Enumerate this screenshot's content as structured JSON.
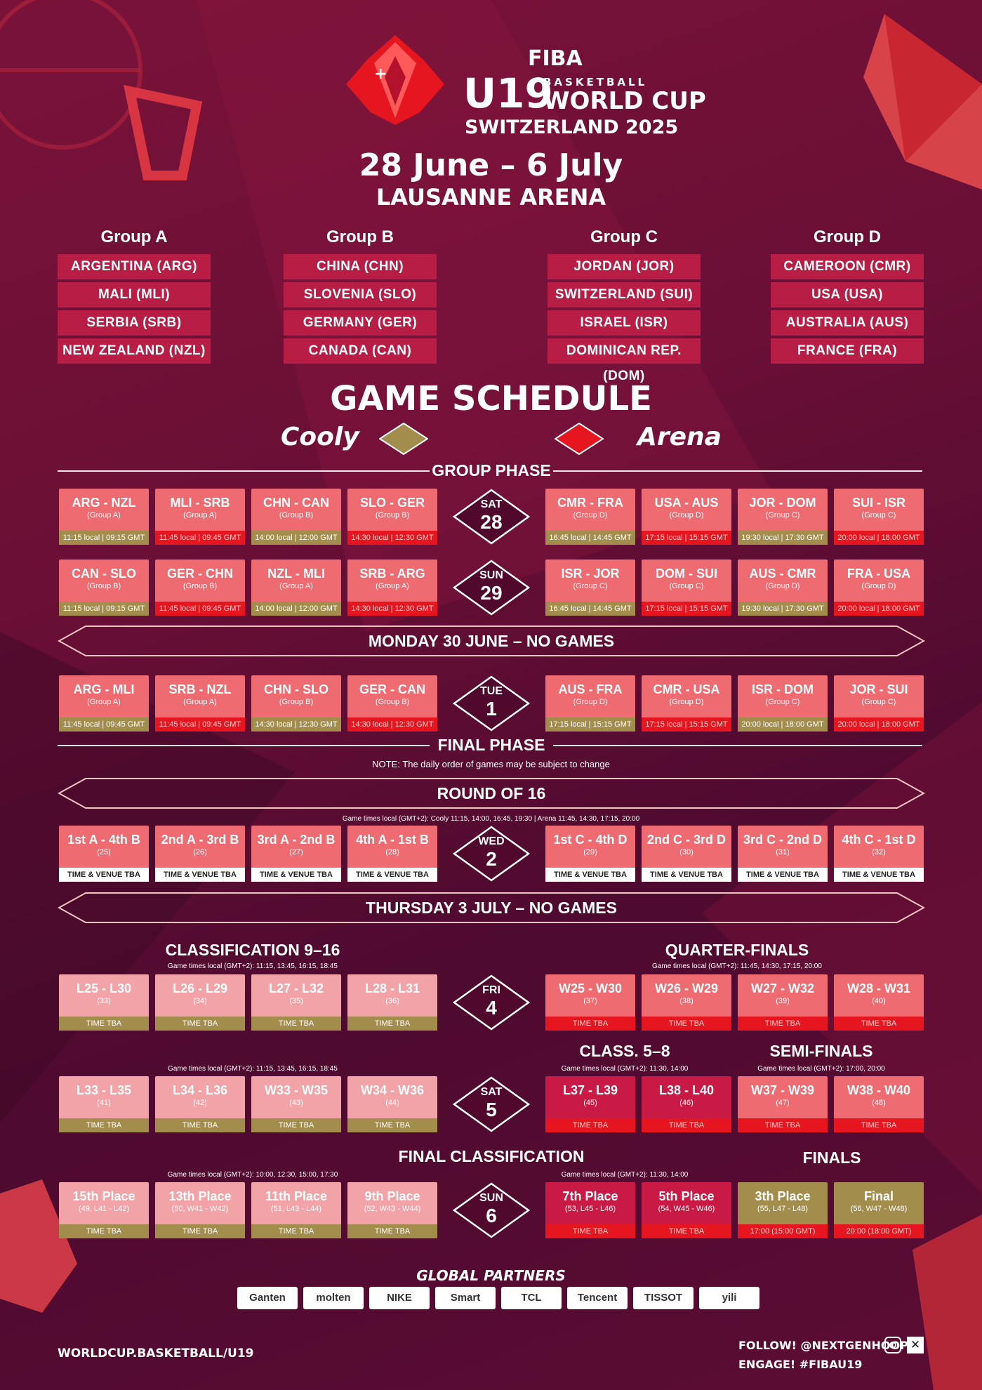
{
  "header": {
    "fiba": "FIBA",
    "u19": "U19",
    "basketball": "BASKETBALL",
    "world_cup": "WORLD CUP",
    "host": "SWITZERLAND 2025",
    "dates": "28 June – 6 July",
    "venue": "LAUSANNE ARENA"
  },
  "groups": [
    {
      "title": "Group A",
      "teams": [
        "ARGENTINA (ARG)",
        "MALI (MLI)",
        "SERBIA (SRB)",
        "NEW ZEALAND (NZL)"
      ]
    },
    {
      "title": "Group B",
      "teams": [
        "CHINA (CHN)",
        "SLOVENIA (SLO)",
        "GERMANY (GER)",
        "CANADA (CAN)"
      ]
    },
    {
      "title": "Group C",
      "teams": [
        "JORDAN (JOR)",
        "SWITZERLAND (SUI)",
        "ISRAEL (ISR)",
        "DOMINICAN REP. (DOM)"
      ]
    },
    {
      "title": "Group D",
      "teams": [
        "CAMEROON (CMR)",
        "USA (USA)",
        "AUSTRALIA (AUS)",
        "FRANCE (FRA)"
      ]
    }
  ],
  "schedule": {
    "title": "GAME SCHEDULE",
    "legend_left": "Cooly",
    "legend_right": "Arena",
    "legend_left_color": "#a28d4d",
    "legend_right_color": "#e5161f",
    "group_phase": "GROUP PHASE",
    "final_phase": "FINAL PHASE",
    "note": "NOTE: The daily order of games may be subject to change",
    "no_games_1": "MONDAY 30 JUNE – NO GAMES",
    "no_games_2": "THURSDAY 3 JULY – NO GAMES",
    "round16": "ROUND OF 16",
    "round16_times": "Game times local (GMT+2): Cooly 11:15, 14:00, 16:45, 19:30 | Arena 11:45, 14:30, 17:15, 20:00",
    "class916": "CLASSIFICATION 9–16",
    "class916_times": "Game times local (GMT+2): 11:15, 13:45, 16:15, 18:45",
    "qf": "QUARTER-FINALS",
    "qf_times": "Game times local (GMT+2): 11:45, 14:30, 17:15, 20:00",
    "class58": "CLASS. 5–8",
    "class58_times": "Game times local (GMT+2): 11:30, 14:00",
    "semis": "SEMI-FINALS",
    "semis_times": "Game times local (GMT+2): 17:00, 20:00",
    "sat5_times": "Game times local (GMT+2): 11:15, 13:45, 16:15, 18:45",
    "final_class": "FINAL CLASSIFICATION",
    "final_class_times": "Game times local (GMT+2): 10:00, 12:30, 15:00, 17:30",
    "finals": "FINALS",
    "sun6_times": "Game times local (GMT+2): 11:30, 14:00"
  },
  "days": [
    {
      "dn": "SAT",
      "dd": "28"
    },
    {
      "dn": "SUN",
      "dd": "29"
    },
    {
      "dn": "TUE",
      "dd": "1"
    },
    {
      "dn": "WED",
      "dd": "2"
    },
    {
      "dn": "FRI",
      "dd": "4"
    },
    {
      "dn": "SAT",
      "dd": "5"
    },
    {
      "dn": "SUN",
      "dd": "6"
    }
  ],
  "rows": {
    "sat28": [
      [
        "ARG - NZL",
        "(Group A)",
        "11:15 local | 09:15 GMT"
      ],
      [
        "MLI - SRB",
        "(Group A)",
        "11:45 local | 09:45 GMT"
      ],
      [
        "CHN - CAN",
        "(Group B)",
        "14:00 local | 12:00 GMT"
      ],
      [
        "SLO - GER",
        "(Group B)",
        "14:30 local | 12:30 GMT"
      ],
      [
        "CMR - FRA",
        "(Group D)",
        "16:45 local | 14:45 GMT"
      ],
      [
        "USA - AUS",
        "(Group D)",
        "17:15 local | 15:15 GMT"
      ],
      [
        "JOR - DOM",
        "(Group C)",
        "19:30 local | 17:30 GMT"
      ],
      [
        "SUI - ISR",
        "(Group C)",
        "20:00 local | 18:00 GMT"
      ]
    ],
    "sun29": [
      [
        "CAN - SLO",
        "(Group B)",
        "11:15 local | 09:15 GMT"
      ],
      [
        "GER - CHN",
        "(Group B)",
        "11:45 local | 09:45 GMT"
      ],
      [
        "NZL - MLI",
        "(Group A)",
        "14:00 local | 12:00 GMT"
      ],
      [
        "SRB - ARG",
        "(Group A)",
        "14:30 local | 12:30 GMT"
      ],
      [
        "ISR - JOR",
        "(Group C)",
        "16:45 local | 14:45 GMT"
      ],
      [
        "DOM - SUI",
        "(Group C)",
        "17:15 local | 15:15 GMT"
      ],
      [
        "AUS - CMR",
        "(Group D)",
        "19:30 local | 17:30 GMT"
      ],
      [
        "FRA - USA",
        "(Group D)",
        "20:00 local | 18:00 GMT"
      ]
    ],
    "tue1": [
      [
        "ARG - MLI",
        "(Group A)",
        "11:45 local | 09:45 GMT"
      ],
      [
        "SRB - NZL",
        "(Group A)",
        "11:45 local | 09:45 GMT"
      ],
      [
        "CHN - SLO",
        "(Group B)",
        "14:30 local | 12:30 GMT"
      ],
      [
        "GER - CAN",
        "(Group B)",
        "14:30 local | 12:30 GMT"
      ],
      [
        "AUS - FRA",
        "(Group D)",
        "17:15 local | 15:15 GMT"
      ],
      [
        "CMR - USA",
        "(Group D)",
        "17:15 local | 15:15 GMT"
      ],
      [
        "ISR - DOM",
        "(Group C)",
        "20:00 local | 18:00 GMT"
      ],
      [
        "JOR - SUI",
        "(Group C)",
        "20:00 local | 18:00 GMT"
      ]
    ],
    "wed2": [
      [
        "1st A - 4th B",
        "(25)",
        "TIME & VENUE TBA"
      ],
      [
        "2nd A - 3rd B",
        "(26)",
        "TIME & VENUE TBA"
      ],
      [
        "3rd A - 2nd B",
        "(27)",
        "TIME & VENUE TBA"
      ],
      [
        "4th A - 1st B",
        "(28)",
        "TIME & VENUE TBA"
      ],
      [
        "1st C - 4th D",
        "(29)",
        "TIME & VENUE TBA"
      ],
      [
        "2nd C - 3rd D",
        "(30)",
        "TIME & VENUE TBA"
      ],
      [
        "3rd C - 2nd D",
        "(31)",
        "TIME & VENUE TBA"
      ],
      [
        "4th C - 1st D",
        "(32)",
        "TIME & VENUE TBA"
      ]
    ],
    "fri4": [
      [
        "L25 - L30",
        "(33)",
        "TIME TBA"
      ],
      [
        "L26 - L29",
        "(34)",
        "TIME TBA"
      ],
      [
        "L27 - L32",
        "(35)",
        "TIME TBA"
      ],
      [
        "L28 - L31",
        "(36)",
        "TIME TBA"
      ],
      [
        "W25 - W30",
        "(37)",
        "TIME TBA"
      ],
      [
        "W26 - W29",
        "(38)",
        "TIME TBA"
      ],
      [
        "W27 - W32",
        "(39)",
        "TIME TBA"
      ],
      [
        "W28 - W31",
        "(40)",
        "TIME TBA"
      ]
    ],
    "sat5": [
      [
        "L33 - L35",
        "(41)",
        "TIME TBA"
      ],
      [
        "L34 - L36",
        "(42)",
        "TIME TBA"
      ],
      [
        "W33 - W35",
        "(43)",
        "TIME TBA"
      ],
      [
        "W34 - W36",
        "(44)",
        "TIME TBA"
      ],
      [
        "L37 - L39",
        "(45)",
        "TIME TBA"
      ],
      [
        "L38 - L40",
        "(46)",
        "TIME TBA"
      ],
      [
        "W37 - W39",
        "(47)",
        "TIME TBA"
      ],
      [
        "W38 - W40",
        "(48)",
        "TIME TBA"
      ]
    ],
    "sun6": [
      [
        "15th Place",
        "(49, L41 - L42)",
        "TIME TBA"
      ],
      [
        "13th Place",
        "(50, W41 - W42)",
        "TIME TBA"
      ],
      [
        "11th Place",
        "(51, L43 - L44)",
        "TIME TBA"
      ],
      [
        "9th Place",
        "(52, W43 - W44)",
        "TIME TBA"
      ],
      [
        "7th Place",
        "(53, L45 - L46)",
        "TIME TBA"
      ],
      [
        "5th Place",
        "(54, W45 - W46)",
        "TIME TBA"
      ],
      [
        "3th Place",
        "(55, L47 - L48)",
        "17:00 (15:00 GMT)"
      ],
      [
        "Final",
        "(56, W47 - W48)",
        "20:00 (18:00 GMT)"
      ]
    ]
  },
  "partners": {
    "title": "GLOBAL PARTNERS",
    "items": [
      "Ganten",
      "molten",
      "NIKE",
      "Smart",
      "TCL",
      "Tencent",
      "TISSOT",
      "yili"
    ]
  },
  "footer": {
    "url": "WORLDCUP.BASKETBALL/U19",
    "follow": "FOLLOW! @NEXTGENHOOPS",
    "engage": "ENGAGE! #FIBAU19"
  }
}
